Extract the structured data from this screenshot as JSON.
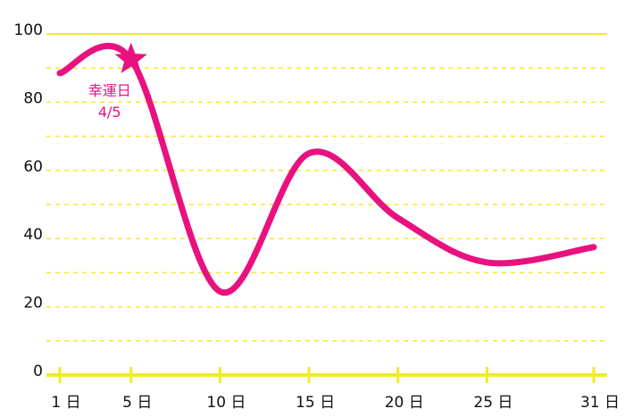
{
  "chart_data": {
    "type": "line",
    "x": [
      1,
      5,
      10,
      15,
      20,
      25,
      31
    ],
    "series": [
      {
        "color": "#e8117f",
        "values": [
          88.5,
          92.5,
          24.5,
          65,
          46,
          33,
          37.5
        ]
      }
    ],
    "xlim": [
      1,
      31
    ],
    "xticks": [
      {
        "value": 1,
        "label": "1 日"
      },
      {
        "value": 5,
        "label": "5 日"
      },
      {
        "value": 10,
        "label": "10 日"
      },
      {
        "value": 15,
        "label": "15 日"
      },
      {
        "value": 20,
        "label": "20 日"
      },
      {
        "value": 25,
        "label": "25 日"
      },
      {
        "value": 31,
        "label": "31 日"
      }
    ],
    "ylim": [
      0,
      100
    ],
    "yticks": [
      0,
      20,
      40,
      60,
      80,
      100
    ],
    "minor_grid": [
      10,
      30,
      50,
      70,
      90
    ],
    "grid_color": "#f2ea2a",
    "annotation": {
      "x": 5,
      "y": 92.5,
      "lines": [
        "幸運日",
        "4/5"
      ],
      "color": "#e8117f"
    }
  }
}
